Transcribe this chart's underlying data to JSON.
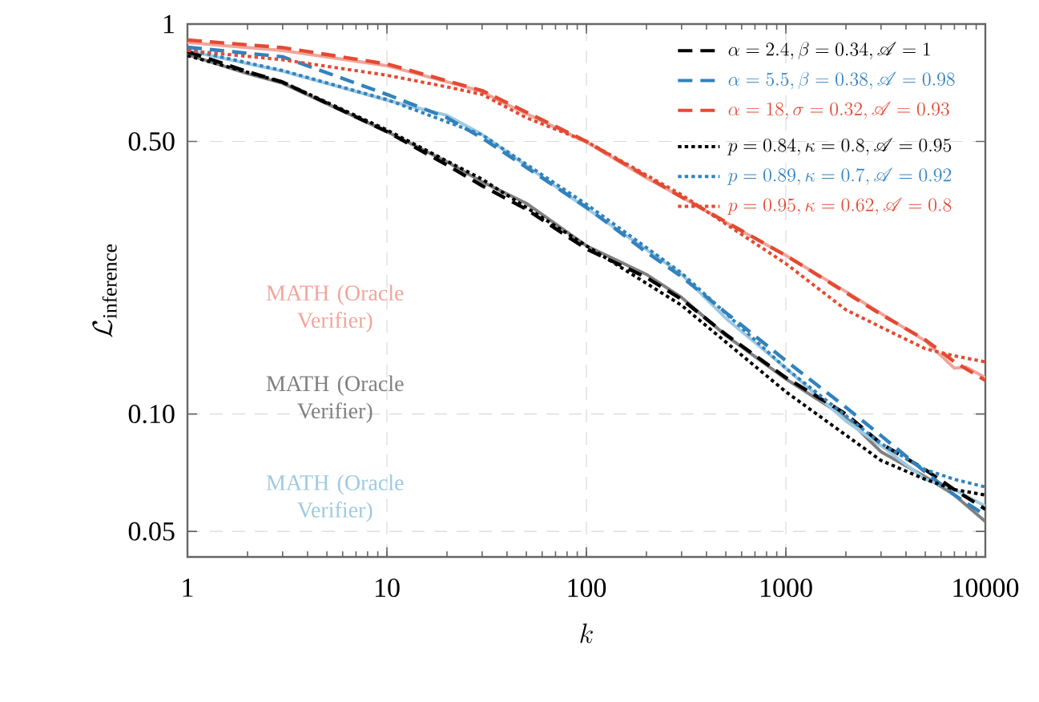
{
  "chart_data": {
    "type": "line",
    "xlabel": "k",
    "ylabel": "\\mathcal{L}_{\\text{inference}}",
    "log": "xy",
    "grid": true,
    "legend": "top right",
    "xlim": [
      1,
      10000
    ],
    "ylim": [
      0.043,
      1
    ],
    "xticks": [
      1,
      10,
      100,
      1000,
      10000
    ],
    "yticks": [
      {
        "value": 0.05,
        "label": "0.05"
      },
      {
        "value": 0.1,
        "label": "0.10"
      },
      {
        "value": 0.5,
        "label": "0.50"
      },
      1
    ],
    "series": [
      {
        "name": "MATH (Oracle Verifier)",
        "color": "#f1a59b",
        "line_style": "solid",
        "x": [
          1,
          3,
          10,
          20,
          30,
          36,
          100,
          200,
          300,
          500,
          1000,
          2000,
          3000,
          5000,
          7000,
          8000,
          10000
        ],
        "values": [
          0.897,
          0.855,
          0.782,
          0.711,
          0.672,
          0.638,
          0.498,
          0.403,
          0.36,
          0.31,
          0.255,
          0.206,
          0.181,
          0.154,
          0.131,
          0.132,
          0.124
        ]
      },
      {
        "name": "MATH (Oracle Verifier)",
        "color": "#808080",
        "line_style": "solid",
        "x": [
          1,
          2,
          3,
          10,
          20,
          30,
          50,
          100,
          200,
          300,
          500,
          1000,
          2000,
          3000,
          5000,
          7000,
          10000
        ],
        "values": [
          0.835,
          0.746,
          0.705,
          0.53,
          0.443,
          0.394,
          0.347,
          0.27,
          0.228,
          0.199,
          0.159,
          0.123,
          0.098,
          0.08,
          0.069,
          0.062,
          0.053
        ]
      },
      {
        "name": "MATH (Oracle Verifier)",
        "color": "#9ecae1",
        "line_style": "solid",
        "x": [
          1,
          3,
          10,
          20,
          30,
          100,
          200,
          300,
          500,
          1000,
          2000,
          3000,
          5000,
          7000,
          10000
        ],
        "values": [
          0.855,
          0.757,
          0.638,
          0.583,
          0.521,
          0.337,
          0.264,
          0.228,
          0.176,
          0.131,
          0.096,
          0.083,
          0.068,
          0.064,
          0.058
        ]
      },
      {
        "name": "\\alpha = 2.4,\\beta = 0.34,\\mathscr{A} = 1",
        "color": "#000000",
        "line_style": "dashed",
        "x": [
          1,
          2,
          3,
          10,
          20,
          30,
          50,
          100,
          200,
          300,
          500,
          1000,
          2000,
          3000,
          5000,
          7000,
          10000
        ],
        "values": [
          0.85,
          0.755,
          0.71,
          0.53,
          0.435,
          0.385,
          0.335,
          0.265,
          0.224,
          0.197,
          0.16,
          0.124,
          0.1,
          0.084,
          0.072,
          0.064,
          0.057
        ]
      },
      {
        "name": "\\alpha = 5.5,\\beta = 0.38,\\mathscr{A} = 0.98",
        "color": "#3182bd",
        "line_style": "dashed",
        "x": [
          1,
          3,
          10,
          20,
          30,
          100,
          200,
          300,
          500,
          1000,
          2000,
          3000,
          5000,
          7000,
          10000
        ],
        "values": [
          0.872,
          0.824,
          0.66,
          0.575,
          0.51,
          0.339,
          0.26,
          0.225,
          0.182,
          0.137,
          0.104,
          0.088,
          0.071,
          0.062,
          0.055
        ]
      },
      {
        "name": "\\alpha = 18,\\sigma = 0.32,\\mathscr{A} = 0.93",
        "color": "#e34a33",
        "line_style": "dashed",
        "x": [
          1,
          3,
          10,
          30,
          100,
          300,
          1000,
          3000,
          5000,
          7000,
          10000
        ],
        "values": [
          0.91,
          0.87,
          0.79,
          0.675,
          0.5,
          0.36,
          0.255,
          0.18,
          0.155,
          0.136,
          0.122
        ]
      },
      {
        "name": "p = 0.84,\\kappa = 0.8,\\mathscr{A} = 0.95",
        "color": "#000000",
        "line_style": "dotted",
        "x": [
          1,
          3,
          10,
          30,
          100,
          300,
          1000,
          3000,
          5000,
          7000,
          10000
        ],
        "values": [
          0.83,
          0.71,
          0.535,
          0.4,
          0.27,
          0.19,
          0.114,
          0.076,
          0.068,
          0.064,
          0.062
        ]
      },
      {
        "name": "p = 0.89,\\kappa = 0.7,\\mathscr{A} = 0.92",
        "color": "#3182bd",
        "line_style": "dotted",
        "x": [
          1,
          3,
          10,
          30,
          100,
          300,
          1000,
          3000,
          5000,
          7000,
          10000
        ],
        "values": [
          0.86,
          0.76,
          0.64,
          0.52,
          0.345,
          0.23,
          0.131,
          0.084,
          0.072,
          0.068,
          0.065
        ]
      },
      {
        "name": "p = 0.95,\\kappa = 0.62,\\mathscr{A} = 0.8",
        "color": "#e34a33",
        "line_style": "dotted",
        "x": [
          1,
          3,
          10,
          20,
          30,
          50,
          100,
          300,
          1000,
          2000,
          3000,
          5000,
          7000,
          10000
        ],
        "values": [
          0.855,
          0.81,
          0.739,
          0.69,
          0.66,
          0.575,
          0.5,
          0.365,
          0.243,
          0.185,
          0.167,
          0.147,
          0.141,
          0.136
        ]
      }
    ]
  }
}
